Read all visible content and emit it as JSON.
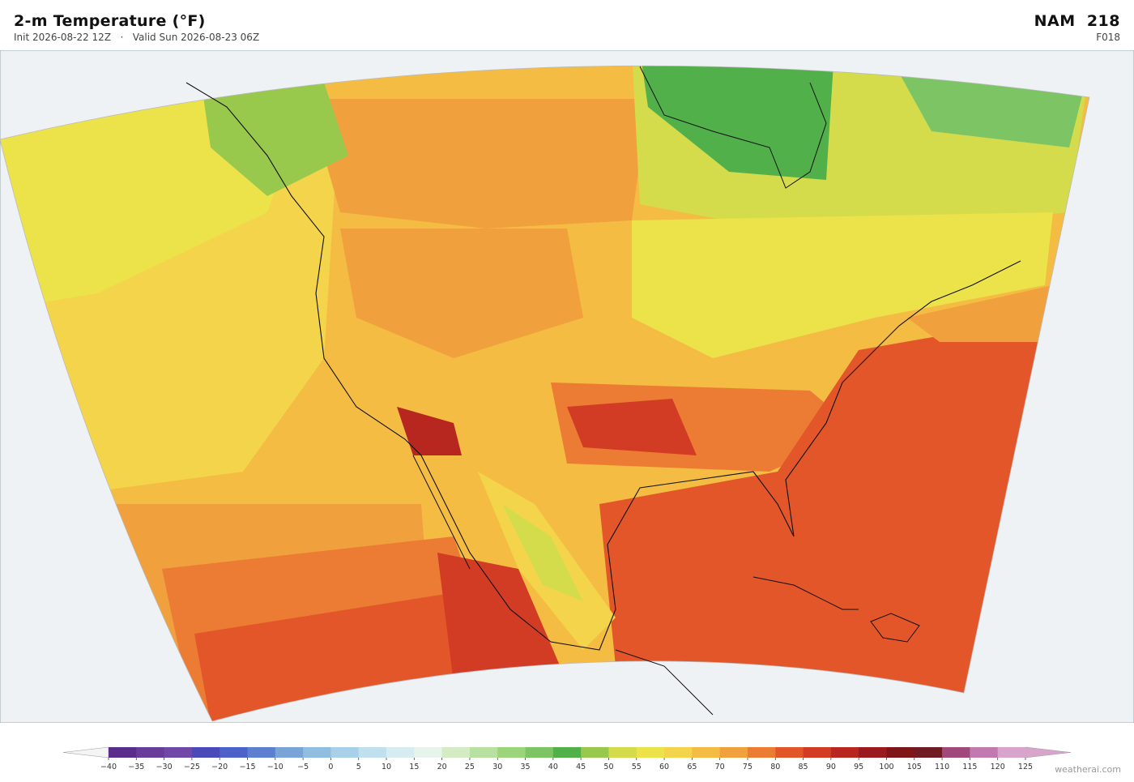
{
  "header": {
    "title": "2-m Temperature  (°F)",
    "subtitle": "Init 2026-08-22 12Z   ·   Valid Sun 2026-08-23 06Z",
    "model": "NAM  218",
    "forecast_hour": "F018"
  },
  "colorbar": {
    "ticks": [
      {
        "value": -40,
        "label": "−40"
      },
      {
        "value": -35,
        "label": "−35"
      },
      {
        "value": -30,
        "label": "−30"
      },
      {
        "value": -25,
        "label": "−25"
      },
      {
        "value": -20,
        "label": "−20"
      },
      {
        "value": -15,
        "label": "−15"
      },
      {
        "value": -10,
        "label": "−10"
      },
      {
        "value": -5,
        "label": "−5"
      },
      0,
      5,
      10,
      15,
      20,
      25,
      30,
      35,
      40,
      45,
      50,
      55,
      60,
      65,
      70,
      75,
      80,
      85,
      90,
      95,
      100,
      105,
      110,
      115,
      120,
      125
    ],
    "colors": [
      "#5a2d8c",
      "#6a3c9a",
      "#7048a8",
      "#4a4ab8",
      "#4d62c8",
      "#5c7fd0",
      "#7aa4d8",
      "#90bde0",
      "#a8d0e8",
      "#c0e0ee",
      "#d6ecf0",
      "#e6f4ec",
      "#d4ecc4",
      "#b8e0a0",
      "#9cd47c",
      "#7cc464",
      "#52b04a",
      "#98c84c",
      "#d4dc4c",
      "#ece24a",
      "#f4d44a",
      "#f4bc42",
      "#f0a03c",
      "#ec7c34",
      "#e2562a",
      "#d23c24",
      "#b82620",
      "#9a1a1e",
      "#7e1618",
      "#701a24",
      "#a04a7c",
      "#c07ab0",
      "#d8a4cc"
    ],
    "under_color": "#f4f4f4",
    "over_color": "#d8a4cc"
  },
  "credit": "weatherai.com"
}
